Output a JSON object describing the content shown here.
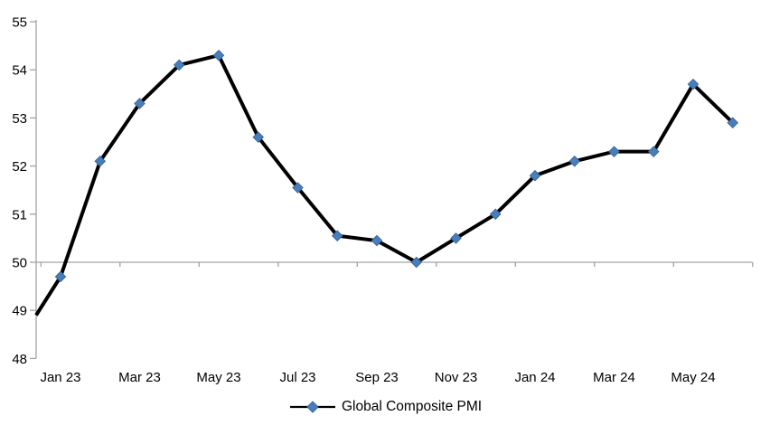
{
  "chart_data": {
    "type": "line",
    "title": "",
    "legend": {
      "label": "Global Composite PMI",
      "position": "bottom-center"
    },
    "categories": [
      "Jan 23",
      "Feb 23",
      "Mar 23",
      "Apr 23",
      "May 23",
      "Jun 23",
      "Jul 23",
      "Aug 23",
      "Sep 23",
      "Oct 23",
      "Nov 23",
      "Dec 23",
      "Jan 24",
      "Feb 24",
      "Mar 24",
      "Apr 24",
      "May 24",
      "Jun 24"
    ],
    "values": [
      49.7,
      52.1,
      53.3,
      54.1,
      54.3,
      52.6,
      51.55,
      50.55,
      50.45,
      50.0,
      50.5,
      51.0,
      51.8,
      52.1,
      52.3,
      52.3,
      53.7,
      52.9
    ],
    "axis_entry_value": 48.9,
    "x_tick_labels": [
      "Jan 23",
      "Mar 23",
      "May 23",
      "Jul 23",
      "Sep 23",
      "Nov 23",
      "Jan 24",
      "Mar 24",
      "May 24"
    ],
    "y_ticks": [
      55,
      54,
      53,
      52,
      51,
      50,
      49,
      48
    ],
    "ylim": [
      48,
      55
    ],
    "x_axis_cross_value": 50,
    "grid": false,
    "marker_style": "diamond",
    "colors": {
      "line": "#000000",
      "marker_fill": "#4a7ebb",
      "marker_border": "#39689f",
      "axis": "#a3a3a3",
      "text": "#000000"
    }
  }
}
